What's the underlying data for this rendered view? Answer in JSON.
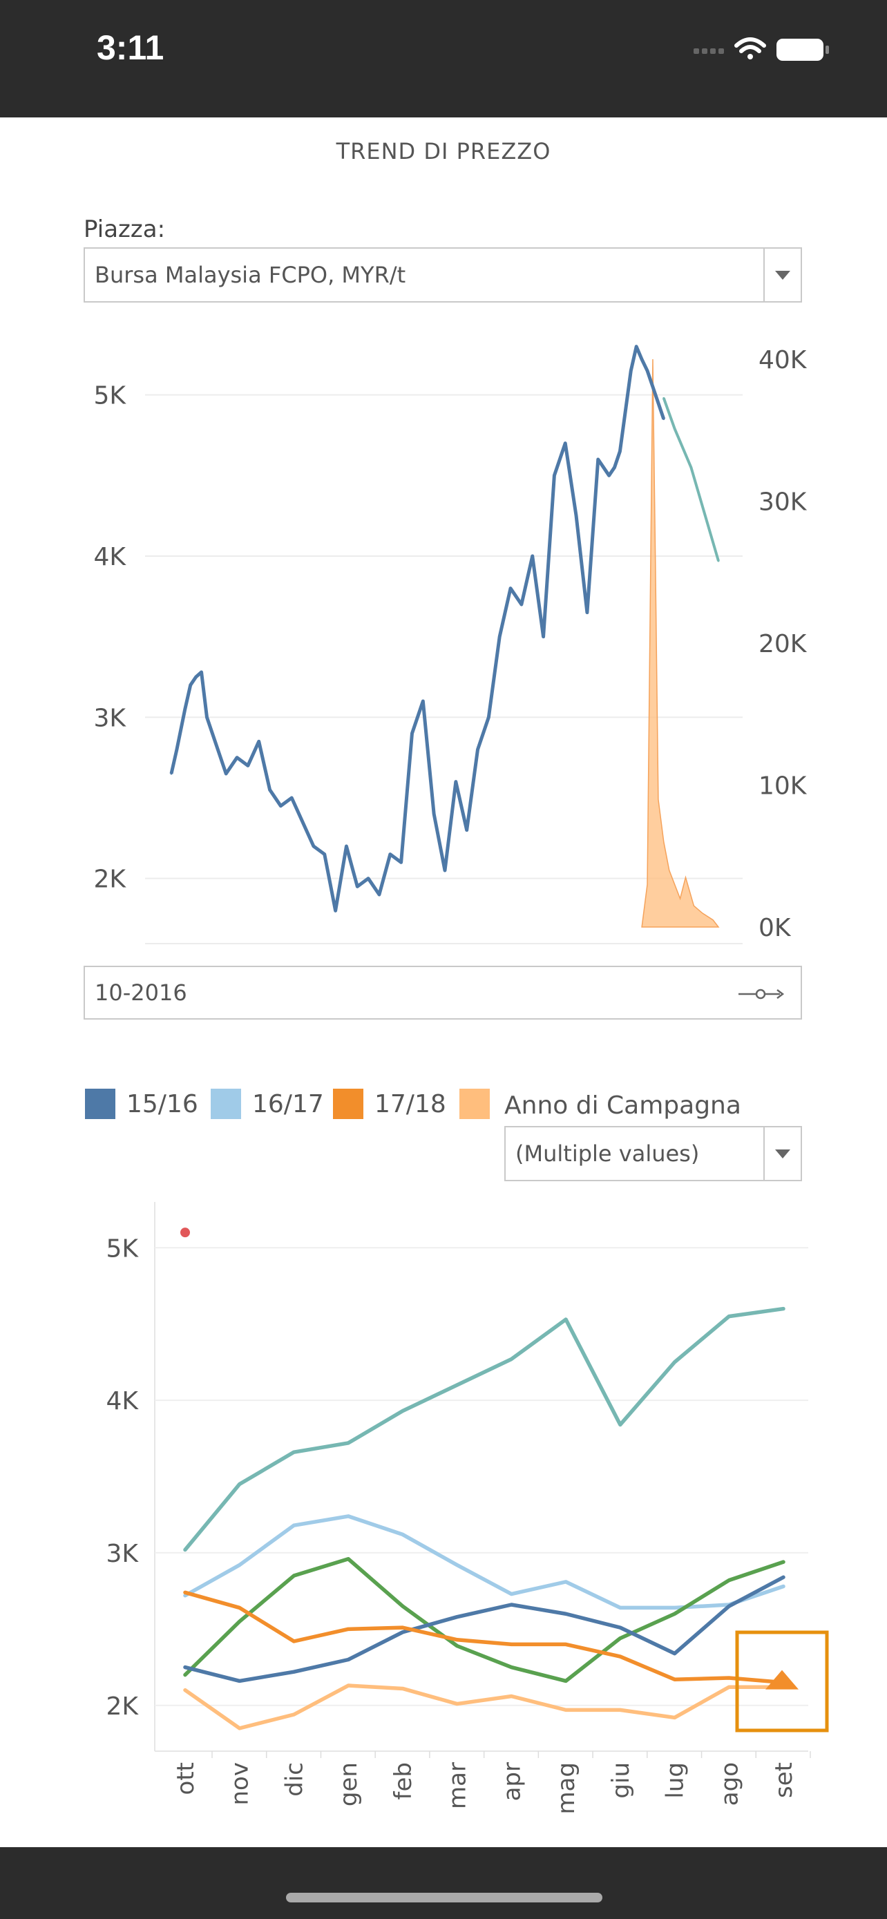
{
  "status_bar": {
    "time": "3:11"
  },
  "page_title": "TREND DI PREZZO",
  "filter_market": {
    "label": "Piazza:",
    "value": "Bursa Malaysia FCPO, MYR/t"
  },
  "date_slider": {
    "value": "10-2016"
  },
  "campaign_filter": {
    "label": "Anno di Campagna",
    "value": "(Multiple values)"
  },
  "legend": [
    {
      "label": "15/16",
      "color": "#4e79a7"
    },
    {
      "label": "16/17",
      "color": "#a0cbe8"
    },
    {
      "label": "17/18",
      "color": "#f28e2b"
    },
    {
      "label": "",
      "color": "#ffbe7d"
    }
  ],
  "chart_data": [
    {
      "type": "line",
      "y_left_ticks": [
        "2K",
        "3K",
        "4K",
        "5K"
      ],
      "y_right_ticks": [
        "0K",
        "10K",
        "20K",
        "30K",
        "40K"
      ],
      "ylim_left": [
        1600,
        5350
      ],
      "ylim_right": [
        0,
        40000
      ],
      "series": [
        {
          "color": "#4e79a7",
          "x": [
            0,
            0.01,
            0.025,
            0.035,
            0.045,
            0.055,
            0.065,
            0.075,
            0.085,
            0.1,
            0.12,
            0.14,
            0.16,
            0.18,
            0.2,
            0.22,
            0.24,
            0.26,
            0.28,
            0.3,
            0.32,
            0.34,
            0.36,
            0.38,
            0.4,
            0.42,
            0.44,
            0.46,
            0.48,
            0.5,
            0.52,
            0.54,
            0.56,
            0.58,
            0.6,
            0.62,
            0.64,
            0.66,
            0.68,
            0.7,
            0.72,
            0.74,
            0.76,
            0.78,
            0.8,
            0.81,
            0.82,
            0.83,
            0.84,
            0.85,
            0.86,
            0.87,
            0.88,
            0.89,
            0.9
          ],
          "values": [
            2650,
            2800,
            3050,
            3200,
            3250,
            3280,
            3000,
            2900,
            2800,
            2650,
            2750,
            2700,
            2850,
            2550,
            2450,
            2500,
            2350,
            2200,
            2150,
            1800,
            2200,
            1950,
            2000,
            1900,
            2150,
            2100,
            2900,
            3100,
            2400,
            2050,
            2600,
            2300,
            2800,
            3000,
            3500,
            3800,
            3700,
            4000,
            3500,
            4500,
            4700,
            4250,
            3650,
            4600,
            4500,
            4550,
            4650,
            4900,
            5150,
            5300,
            5220,
            5150,
            5050,
            4950,
            4850
          ]
        },
        {
          "color": "#76b7b2",
          "x": [
            0.9,
            0.92,
            0.95,
            1.0
          ],
          "values": [
            4980,
            4790,
            4550,
            3970
          ]
        }
      ],
      "area_series": {
        "color": "#ffbe7d",
        "x": [
          0.86,
          0.87,
          0.88,
          0.885,
          0.89,
          0.9,
          0.91,
          0.93,
          0.94,
          0.955,
          0.97,
          0.99,
          1.0
        ],
        "values": [
          0,
          3000,
          40000,
          25000,
          9000,
          6000,
          4000,
          2000,
          3500,
          1500,
          1000,
          500,
          0
        ]
      }
    },
    {
      "type": "line",
      "categories": [
        "ott",
        "nov",
        "dic",
        "gen",
        "feb",
        "mar",
        "apr",
        "mag",
        "giu",
        "lug",
        "ago",
        "set"
      ],
      "y_ticks": [
        "2K",
        "3K",
        "4K",
        "5K"
      ],
      "ylim": [
        1700,
        5300
      ],
      "series": [
        {
          "color": "#76b7b2",
          "values": [
            3020,
            3450,
            3660,
            3720,
            3930,
            4100,
            4270,
            4530,
            3840,
            4250,
            4550,
            4600
          ]
        },
        {
          "color": "#a0cbe8",
          "values": [
            2720,
            2920,
            3180,
            3240,
            3120,
            2920,
            2730,
            2810,
            2640,
            2640,
            2660,
            2780
          ]
        },
        {
          "color": "#59a14f",
          "values": [
            2200,
            2550,
            2850,
            2960,
            2650,
            2390,
            2250,
            2160,
            2440,
            2600,
            2820,
            2940
          ]
        },
        {
          "color": "#4e79a7",
          "values": [
            2250,
            2160,
            2220,
            2300,
            2480,
            2580,
            2660,
            2600,
            2510,
            2340,
            2650,
            2840
          ]
        },
        {
          "color": "#f28e2b",
          "values": [
            2740,
            2640,
            2420,
            2500,
            2510,
            2430,
            2400,
            2400,
            2320,
            2170,
            2180,
            2150
          ]
        },
        {
          "color": "#ffbe7d",
          "values": [
            2100,
            1850,
            1940,
            2130,
            2110,
            2010,
            2060,
            1970,
            1970,
            1920,
            2120,
            2120
          ]
        }
      ],
      "annotation_point": {
        "category": "ott",
        "value": 5100,
        "color": "#e15759"
      }
    }
  ]
}
